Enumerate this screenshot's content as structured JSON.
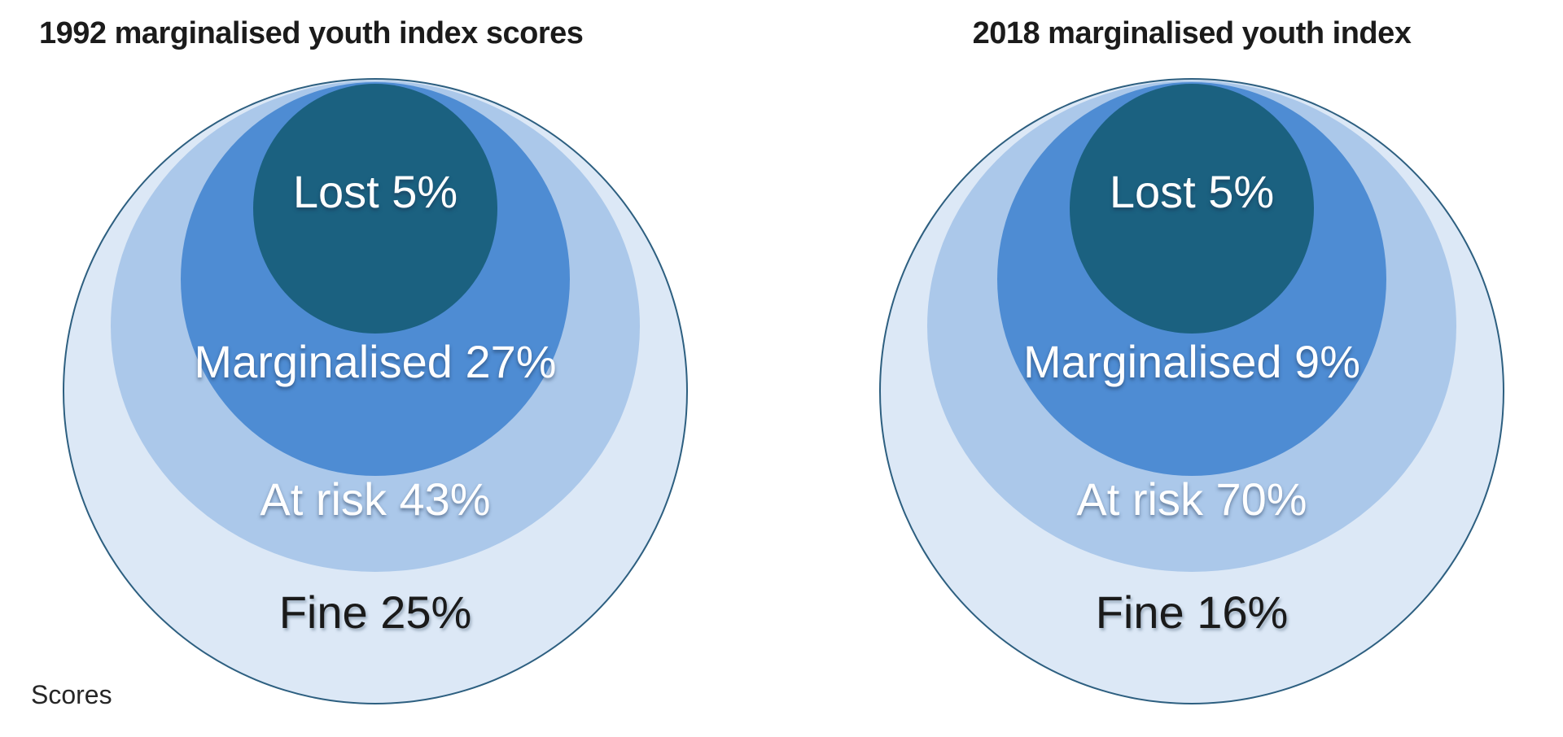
{
  "page": {
    "background": "#ffffff",
    "footnote": "Scores",
    "outline_color": "#2d5f80"
  },
  "charts": [
    {
      "title": "1992 marginalised youth index scores",
      "rings": [
        {
          "name": "Lost",
          "value_pct": 5,
          "label": "Lost 5%",
          "color": "#1b6180",
          "text_color": "#ffffff"
        },
        {
          "name": "Marginalised",
          "value_pct": 27,
          "label": "Marginalised 27%",
          "color": "#4e8cd3",
          "text_color": "#ffffff"
        },
        {
          "name": "At risk",
          "value_pct": 43,
          "label": "At risk 43%",
          "color": "#abc8ea",
          "text_color": "#ffffff"
        },
        {
          "name": "Fine",
          "value_pct": 25,
          "label": "Fine 25%",
          "color": "#dce8f6",
          "text_color": "#1a1a1a"
        }
      ]
    },
    {
      "title": "2018 marginalised youth index",
      "rings": [
        {
          "name": "Lost",
          "value_pct": 5,
          "label": "Lost 5%",
          "color": "#1b6180",
          "text_color": "#ffffff"
        },
        {
          "name": "Marginalised",
          "value_pct": 9,
          "label": "Marginalised 9%",
          "color": "#4e8cd3",
          "text_color": "#ffffff"
        },
        {
          "name": "At risk",
          "value_pct": 70,
          "label": "At risk 70%",
          "color": "#abc8ea",
          "text_color": "#ffffff"
        },
        {
          "name": "Fine",
          "value_pct": 16,
          "label": "Fine 16%",
          "color": "#dce8f6",
          "text_color": "#1a1a1a"
        }
      ]
    }
  ],
  "chart_data": [
    {
      "type": "nested_circles",
      "title": "1992 marginalised youth index scores",
      "categories": [
        "Lost",
        "Marginalised",
        "At risk",
        "Fine"
      ],
      "values": [
        5,
        27,
        43,
        25
      ],
      "unit": "%",
      "labels": [
        "Lost 5%",
        "Marginalised 27%",
        "At risk 43%",
        "Fine 25%"
      ],
      "colors": [
        "#1b6180",
        "#4e8cd3",
        "#abc8ea",
        "#dce8f6"
      ],
      "layout": "top-tangent nested circles, innermost = Lost, outermost = Fine",
      "note": "circle sizes identical in both charts; values conveyed by labels only"
    },
    {
      "type": "nested_circles",
      "title": "2018 marginalised youth index",
      "categories": [
        "Lost",
        "Marginalised",
        "At risk",
        "Fine"
      ],
      "values": [
        5,
        9,
        70,
        16
      ],
      "unit": "%",
      "labels": [
        "Lost 5%",
        "Marginalised 9%",
        "At risk 70%",
        "Fine 16%"
      ],
      "colors": [
        "#1b6180",
        "#4e8cd3",
        "#abc8ea",
        "#dce8f6"
      ],
      "layout": "top-tangent nested circles, innermost = Lost, outermost = Fine",
      "note": "circle sizes identical in both charts; values conveyed by labels only"
    }
  ]
}
